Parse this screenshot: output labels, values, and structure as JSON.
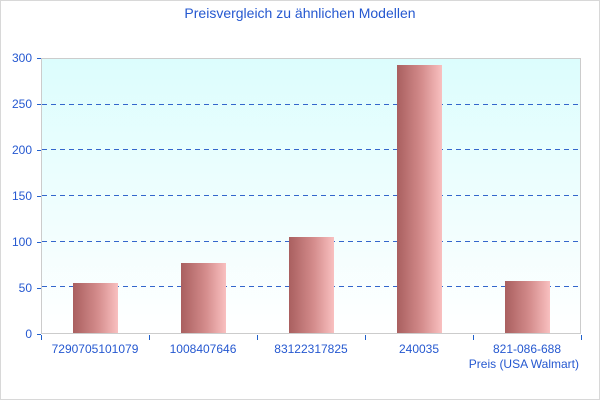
{
  "title": "Preisvergleich zu ähnlichen Modellen",
  "axis_title": "Preis (USA Walmart)",
  "chart_data": {
    "type": "bar",
    "categories": [
      "7290705101079",
      "1008407646",
      "83122317825",
      "240035",
      "821-086-688"
    ],
    "values": [
      55,
      77,
      105,
      293,
      57
    ],
    "title": "Preisvergleich zu ähnlichen Modellen",
    "xlabel": "Preis (USA Walmart)",
    "ylabel": "",
    "ylim": [
      0,
      300
    ],
    "yticks": [
      0,
      50,
      100,
      150,
      200,
      250,
      300
    ],
    "grid": "horizontal-dashed-blue",
    "legend": "none",
    "bar_style": "horizontal gradient dark-rose to light-pink",
    "plot_background": "vertical gradient light-cyan to white"
  },
  "colors": {
    "text_blue": "#2558d0",
    "grid_blue": "#3366cc",
    "tick_blue": "#2261cc",
    "bar_gradient_left": "#a95f5f",
    "bar_gradient_mid": "#d48c8c",
    "bar_gradient_right": "#f9c0c0",
    "plot_bg_top": "#dcfdfd",
    "plot_bg_bottom": "#ffffff",
    "plot_border": "#cccccc",
    "canvas_border": "#d8d8d8"
  }
}
